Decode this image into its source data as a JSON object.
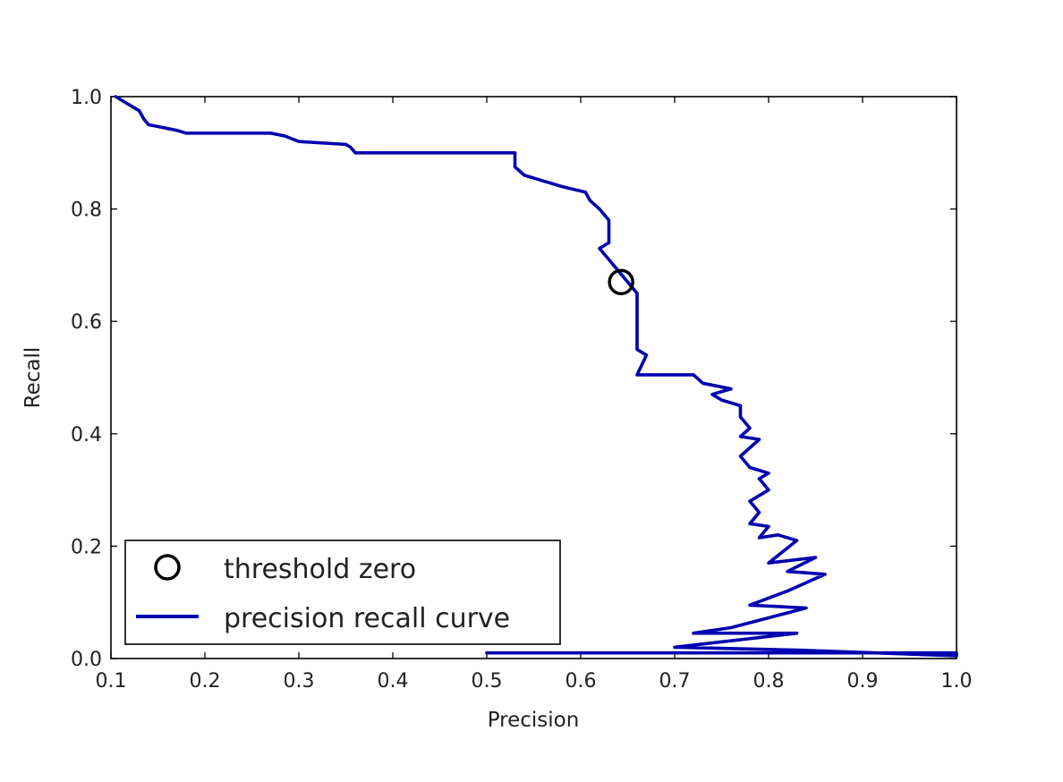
{
  "chart_data": {
    "type": "line",
    "title": "",
    "xlabel": "Precision",
    "ylabel": "Recall",
    "xlim": [
      0.1,
      1.0
    ],
    "ylim": [
      0.0,
      1.0
    ],
    "xticks": [
      "0.1",
      "0.2",
      "0.3",
      "0.4",
      "0.5",
      "0.6",
      "0.7",
      "0.8",
      "0.9",
      "1.0"
    ],
    "yticks": [
      "0.0",
      "0.2",
      "0.4",
      "0.6",
      "0.8",
      "1.0"
    ],
    "grid": false,
    "legend_position": "lower-left",
    "series": [
      {
        "name": "precision recall curve",
        "color": "#0000b0",
        "style": "line",
        "points": [
          [
            0.5,
            0.01
          ],
          [
            1.0,
            0.01
          ],
          [
            1.0,
            0.005
          ],
          [
            0.83,
            0.015
          ],
          [
            0.7,
            0.02
          ],
          [
            0.83,
            0.045
          ],
          [
            0.72,
            0.045
          ],
          [
            0.76,
            0.055
          ],
          [
            0.84,
            0.09
          ],
          [
            0.78,
            0.095
          ],
          [
            0.82,
            0.12
          ],
          [
            0.86,
            0.15
          ],
          [
            0.82,
            0.155
          ],
          [
            0.85,
            0.18
          ],
          [
            0.8,
            0.17
          ],
          [
            0.83,
            0.21
          ],
          [
            0.81,
            0.22
          ],
          [
            0.79,
            0.215
          ],
          [
            0.8,
            0.235
          ],
          [
            0.78,
            0.24
          ],
          [
            0.79,
            0.26
          ],
          [
            0.78,
            0.28
          ],
          [
            0.8,
            0.3
          ],
          [
            0.79,
            0.32
          ],
          [
            0.8,
            0.33
          ],
          [
            0.78,
            0.34
          ],
          [
            0.77,
            0.36
          ],
          [
            0.79,
            0.39
          ],
          [
            0.77,
            0.395
          ],
          [
            0.78,
            0.41
          ],
          [
            0.77,
            0.43
          ],
          [
            0.77,
            0.45
          ],
          [
            0.75,
            0.46
          ],
          [
            0.74,
            0.47
          ],
          [
            0.76,
            0.48
          ],
          [
            0.73,
            0.49
          ],
          [
            0.72,
            0.505
          ],
          [
            0.66,
            0.505
          ],
          [
            0.67,
            0.54
          ],
          [
            0.66,
            0.55
          ],
          [
            0.66,
            0.575
          ],
          [
            0.66,
            0.6
          ],
          [
            0.66,
            0.625
          ],
          [
            0.66,
            0.65
          ],
          [
            0.65,
            0.67
          ],
          [
            0.64,
            0.69
          ],
          [
            0.63,
            0.71
          ],
          [
            0.62,
            0.73
          ],
          [
            0.63,
            0.74
          ],
          [
            0.63,
            0.78
          ],
          [
            0.62,
            0.8
          ],
          [
            0.61,
            0.815
          ],
          [
            0.605,
            0.83
          ],
          [
            0.58,
            0.84
          ],
          [
            0.56,
            0.85
          ],
          [
            0.54,
            0.86
          ],
          [
            0.53,
            0.875
          ],
          [
            0.53,
            0.9
          ],
          [
            0.43,
            0.9
          ],
          [
            0.36,
            0.9
          ],
          [
            0.355,
            0.91
          ],
          [
            0.35,
            0.915
          ],
          [
            0.3,
            0.92
          ],
          [
            0.285,
            0.93
          ],
          [
            0.27,
            0.935
          ],
          [
            0.18,
            0.935
          ],
          [
            0.17,
            0.94
          ],
          [
            0.155,
            0.945
          ],
          [
            0.14,
            0.95
          ],
          [
            0.135,
            0.96
          ],
          [
            0.13,
            0.975
          ],
          [
            0.12,
            0.985
          ],
          [
            0.105,
            1.0
          ]
        ]
      },
      {
        "name": "threshold zero",
        "color": "#000000",
        "style": "marker-circle",
        "points": [
          [
            0.643,
            0.67
          ]
        ]
      }
    ]
  },
  "legend": {
    "entries": [
      "threshold zero",
      "precision recall curve"
    ]
  }
}
